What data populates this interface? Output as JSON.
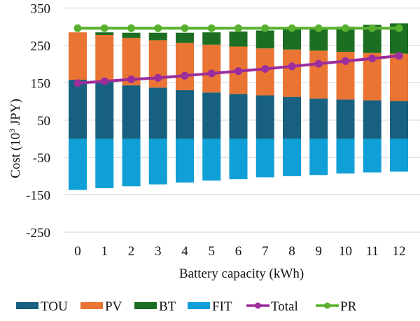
{
  "chart_data": {
    "type": "bar",
    "subtype": "stacked-bar-with-lines",
    "title": "",
    "xlabel": "Battery capacity (kWh)",
    "ylabel": "Cost (10³ JPY)",
    "ylabel_parts": {
      "prefix": "Cost (10",
      "superscript": "3",
      "suffix": " JPY)"
    },
    "ylim": [
      -250,
      350
    ],
    "yticks": [
      350,
      250,
      150,
      50,
      -50,
      -150,
      -250
    ],
    "ytick_labels": [
      "350",
      "250",
      "150",
      "50",
      "-50",
      "-150",
      "-250"
    ],
    "grid": true,
    "legend_position": "bottom",
    "categories": [
      "0",
      "1",
      "2",
      "3",
      "4",
      "5",
      "6",
      "7",
      "8",
      "9",
      "10",
      "11",
      "12"
    ],
    "series": [
      {
        "name": "TOU",
        "kind": "bar",
        "color": "#17607f",
        "values": [
          158,
          153,
          143,
          137,
          130,
          124,
          120,
          116,
          112,
          108,
          105,
          103,
          101
        ]
      },
      {
        "name": "PV",
        "kind": "bar",
        "color": "#ea7433",
        "values": [
          127,
          125,
          127,
          127,
          127,
          128,
          127,
          126,
          127,
          128,
          128,
          127,
          127
        ]
      },
      {
        "name": "BT",
        "kind": "bar",
        "color": "#1b6e22",
        "values": [
          0,
          7,
          14,
          20,
          27,
          33,
          40,
          48,
          54,
          61,
          67,
          75,
          81
        ]
      },
      {
        "name": "FIT",
        "kind": "bar",
        "color": "#109fd6",
        "values": [
          -137,
          -132,
          -127,
          -122,
          -117,
          -112,
          -108,
          -103,
          -100,
          -97,
          -93,
          -90,
          -88
        ]
      },
      {
        "name": "Total",
        "kind": "line",
        "color": "#9c2d9c",
        "values": [
          149,
          154,
          159,
          163,
          169,
          175,
          181,
          187,
          194,
          201,
          208,
          215,
          222
        ]
      },
      {
        "name": "PR",
        "kind": "line",
        "color": "#58b02f",
        "values": [
          296,
          296,
          296,
          296,
          296,
          296,
          296,
          296,
          296,
          296,
          296,
          296,
          296
        ]
      }
    ]
  }
}
